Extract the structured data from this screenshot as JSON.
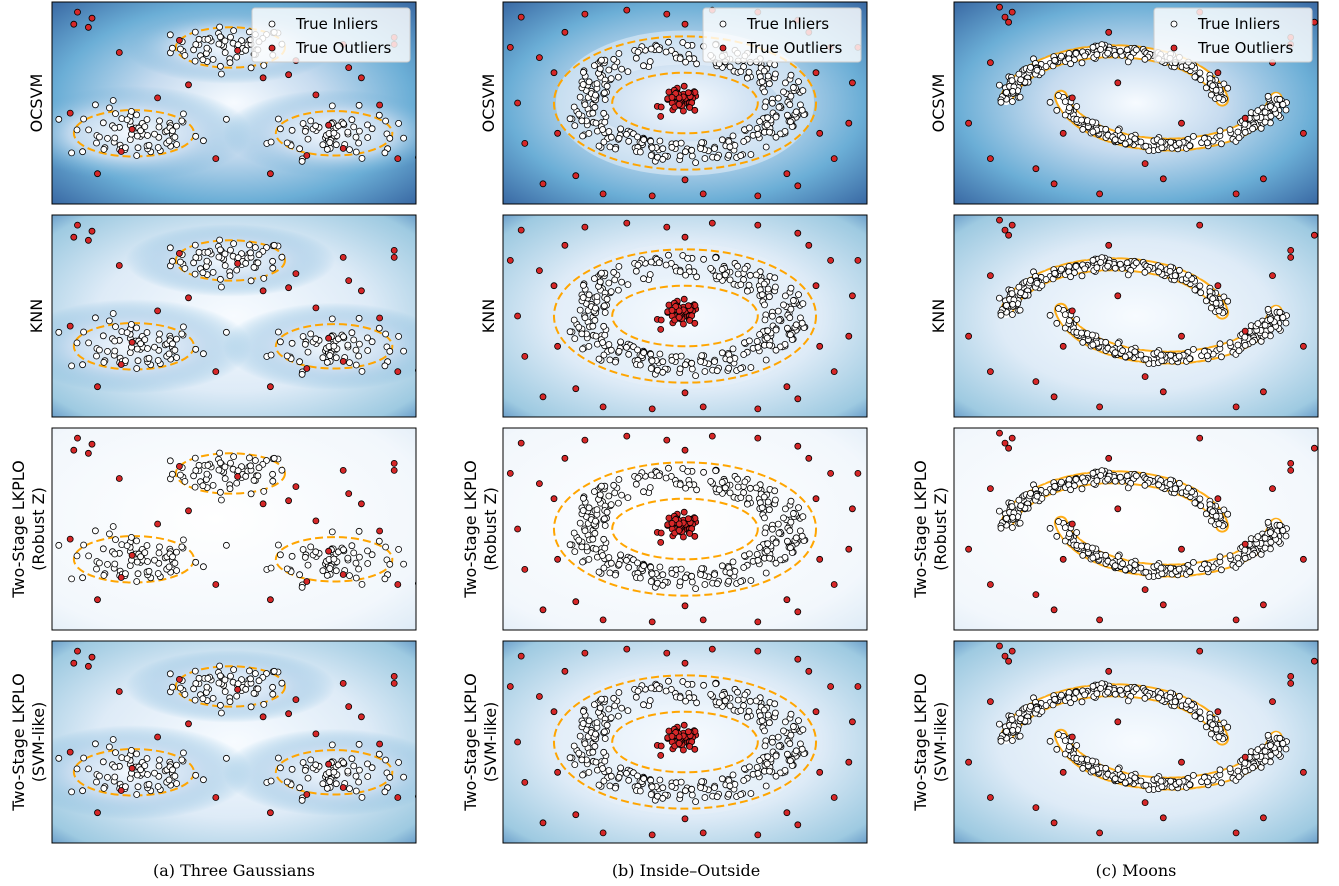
{
  "figure": {
    "row_labels": [
      [
        "OCSVM"
      ],
      [
        "KNN"
      ],
      [
        "Two-Stage LKPLO",
        "(Robust Z)"
      ],
      [
        "Two-Stage LKPLO",
        "(SVM-like)"
      ]
    ],
    "captions": [
      "(a) Three Gaussians",
      "(b) Inside–Outside",
      "(c) Moons"
    ],
    "legend": {
      "inliers_label": "True Inliers",
      "outliers_label": "True Outliers"
    },
    "colors": {
      "inlier_fill": "#ffffff",
      "outlier_fill": "#d62728",
      "marker_edge": "#000000",
      "boundary": "#ffa500",
      "field_dark": "#3b6ba5",
      "field_light": "#f7fbff"
    }
  },
  "chart_data": [
    {
      "type": "scatter",
      "dataset": "(a) Three Gaussians",
      "xlim": [
        -1,
        1
      ],
      "ylim": [
        -1,
        1
      ],
      "clusters": [
        {
          "cx": -0.02,
          "cy": 0.55,
          "sx": 0.16,
          "sy": 0.1,
          "n": 70
        },
        {
          "cx": -0.55,
          "cy": -0.3,
          "sx": 0.18,
          "sy": 0.13,
          "n": 80
        },
        {
          "cx": 0.55,
          "cy": -0.3,
          "sx": 0.17,
          "sy": 0.12,
          "n": 75
        }
      ],
      "outliers": [
        [
          -0.86,
          0.9
        ],
        [
          -0.78,
          0.84
        ],
        [
          -0.88,
          0.78
        ],
        [
          -0.8,
          0.75
        ],
        [
          -0.63,
          0.5
        ],
        [
          -0.9,
          -0.1
        ],
        [
          -0.75,
          -0.7
        ],
        [
          -0.42,
          0.05
        ],
        [
          -0.25,
          0.18
        ],
        [
          -0.1,
          -0.55
        ],
        [
          0.16,
          0.25
        ],
        [
          0.3,
          0.28
        ],
        [
          0.45,
          0.08
        ],
        [
          0.6,
          0.58
        ],
        [
          0.63,
          0.35
        ],
        [
          0.8,
          -0.02
        ],
        [
          0.88,
          0.65
        ],
        [
          0.88,
          0.58
        ],
        [
          0.2,
          -0.7
        ],
        [
          0.6,
          -0.45
        ],
        [
          0.9,
          -0.55
        ],
        [
          -0.3,
          0.62
        ],
        [
          -0.62,
          -0.48
        ],
        [
          0.4,
          -0.52
        ],
        [
          -0.56,
          -0.26
        ],
        [
          0.52,
          -0.22
        ],
        [
          0.02,
          0.52
        ],
        [
          0.7,
          0.25
        ],
        [
          0.34,
          0.42
        ]
      ],
      "boundaries": [
        [
          -0.02,
          0.55,
          0.3,
          0.2
        ],
        [
          -0.55,
          -0.3,
          0.33,
          0.23
        ],
        [
          0.55,
          -0.3,
          0.32,
          0.22
        ]
      ]
    },
    {
      "type": "scatter",
      "dataset": "(b) Inside–Outside",
      "xlim": [
        -1,
        1
      ],
      "ylim": [
        -1,
        1
      ],
      "ring": {
        "rx": 0.56,
        "ry": 0.5,
        "width": 0.12,
        "n": 330
      },
      "core": {
        "cx": -0.02,
        "cy": 0.02,
        "sx": 0.05,
        "sy": 0.06,
        "n": 55
      },
      "outliers": [
        [
          -0.9,
          0.85
        ],
        [
          -0.8,
          0.45
        ],
        [
          -0.92,
          0.0
        ],
        [
          -0.88,
          -0.4
        ],
        [
          -0.78,
          -0.8
        ],
        [
          -0.55,
          0.88
        ],
        [
          -0.32,
          0.92
        ],
        [
          -0.1,
          0.88
        ],
        [
          0.15,
          0.92
        ],
        [
          0.4,
          0.9
        ],
        [
          0.62,
          0.82
        ],
        [
          0.8,
          0.55
        ],
        [
          0.92,
          0.2
        ],
        [
          0.9,
          -0.2
        ],
        [
          0.82,
          -0.55
        ],
        [
          0.62,
          -0.82
        ],
        [
          0.4,
          -0.92
        ],
        [
          0.1,
          -0.9
        ],
        [
          -0.18,
          -0.92
        ],
        [
          -0.45,
          -0.9
        ],
        [
          -0.72,
          0.3
        ],
        [
          -0.7,
          -0.3
        ],
        [
          0.72,
          0.3
        ],
        [
          0.74,
          -0.3
        ],
        [
          -0.66,
          0.7
        ],
        [
          0.68,
          0.7
        ],
        [
          -0.6,
          -0.72
        ],
        [
          0.56,
          -0.7
        ],
        [
          0.0,
          -0.76
        ],
        [
          0.0,
          0.78
        ],
        [
          0.95,
          0.55
        ],
        [
          -0.96,
          0.55
        ]
      ],
      "boundaries": [
        [
          0,
          0,
          0.72,
          0.66
        ],
        [
          0,
          0,
          0.4,
          0.3
        ]
      ]
    },
    {
      "type": "scatter",
      "dataset": "(c) Moons",
      "xlim": [
        -1,
        1
      ],
      "ylim": [
        -1,
        1
      ],
      "moons": [
        {
          "cx": -0.12,
          "cy": -0.05,
          "rx": 0.6,
          "ry": 0.75,
          "a0": 0.15,
          "a1": 3.0,
          "n": 190
        },
        {
          "cx": 0.18,
          "cy": 0.15,
          "rx": 0.6,
          "ry": 0.75,
          "a0": 3.3,
          "a1": 6.1,
          "n": 190
        }
      ],
      "outliers": [
        [
          -0.75,
          0.95
        ],
        [
          -0.72,
          0.85
        ],
        [
          -0.68,
          0.9
        ],
        [
          -0.7,
          0.8
        ],
        [
          -0.8,
          0.4
        ],
        [
          -0.4,
          -0.3
        ],
        [
          -0.15,
          0.7
        ],
        [
          0.35,
          0.9
        ],
        [
          -0.8,
          -0.55
        ],
        [
          -0.55,
          -0.65
        ],
        [
          -0.45,
          -0.8
        ],
        [
          -0.2,
          -0.9
        ],
        [
          0.05,
          -0.6
        ],
        [
          0.25,
          -0.2
        ],
        [
          0.45,
          0.3
        ],
        [
          0.6,
          -0.15
        ],
        [
          0.75,
          0.4
        ],
        [
          0.85,
          0.65
        ],
        [
          0.85,
          0.58
        ],
        [
          0.92,
          -0.3
        ],
        [
          0.7,
          -0.75
        ],
        [
          -0.1,
          0.2
        ],
        [
          0.15,
          -0.75
        ],
        [
          -0.35,
          0.05
        ],
        [
          0.98,
          0.8
        ],
        [
          -0.92,
          -0.2
        ],
        [
          0.55,
          -0.9
        ]
      ],
      "boundaries": []
    }
  ]
}
